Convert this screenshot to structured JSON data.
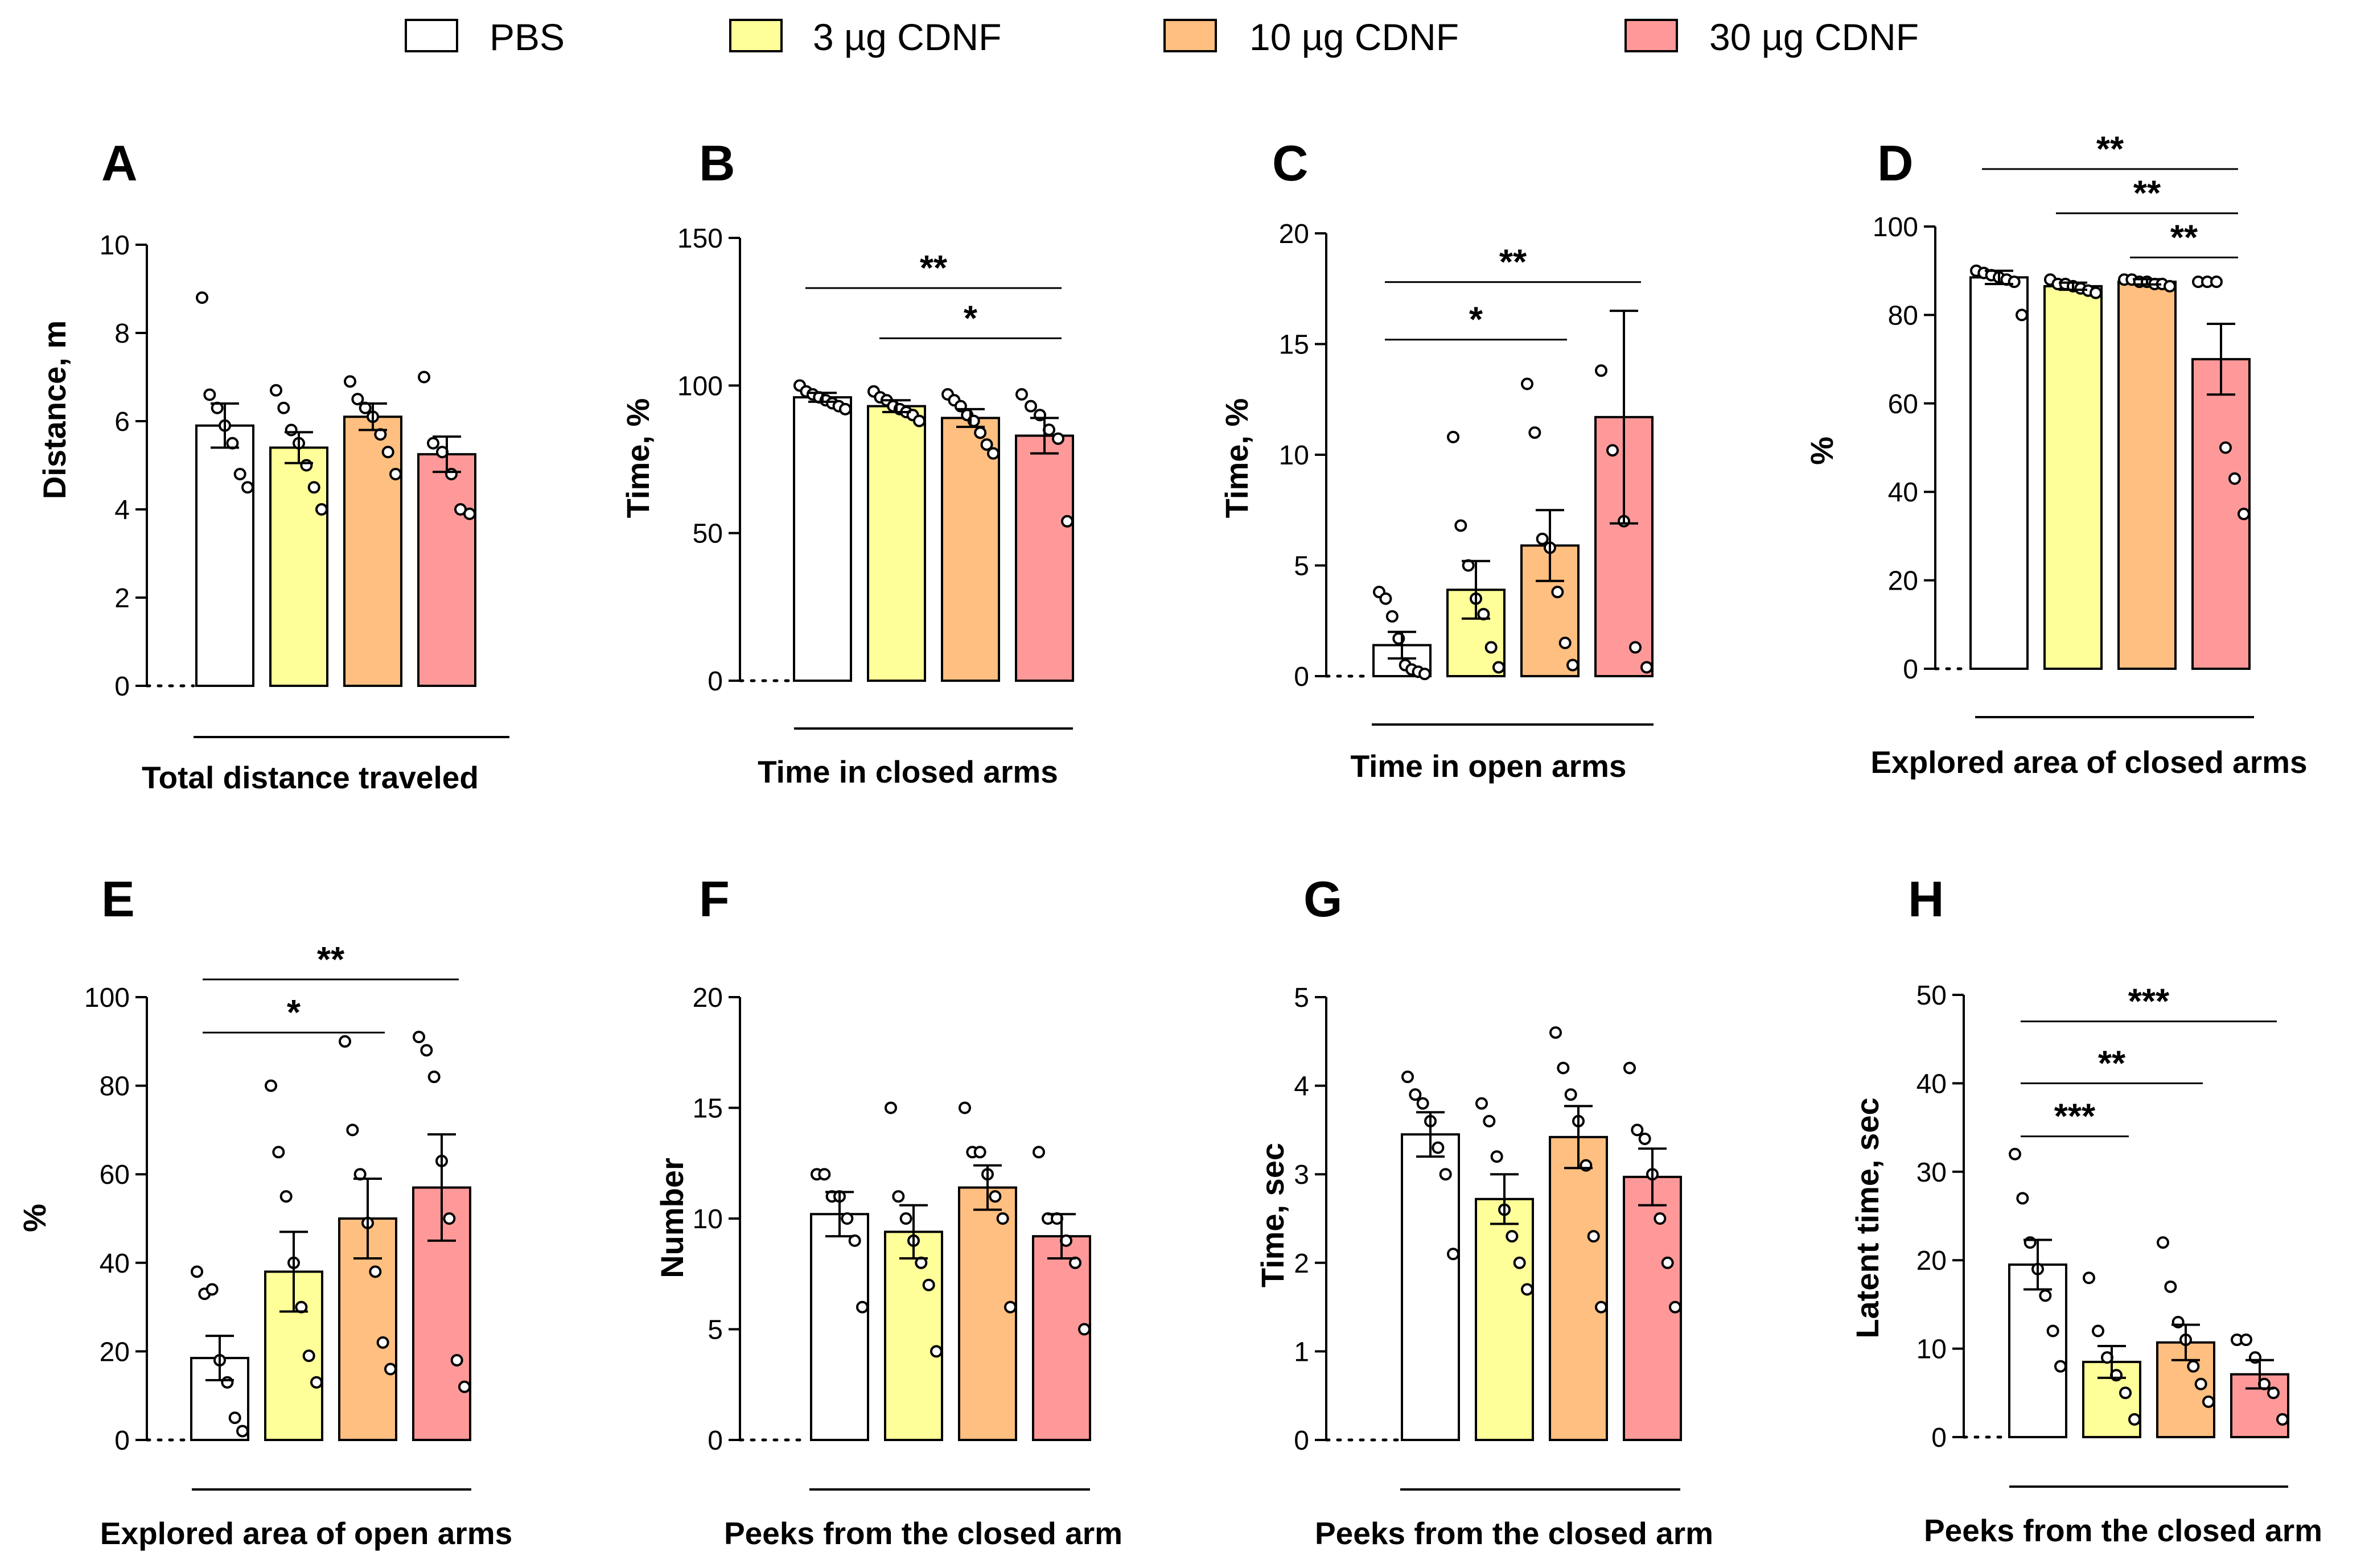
{
  "legend": [
    {
      "label": "PBS",
      "color": "#ffffff"
    },
    {
      "label": "3 µg CDNF",
      "color": "#ffff99"
    },
    {
      "label": "10 µg CDNF",
      "color": "#ffbf80"
    },
    {
      "label": "30 µg CDNF",
      "color": "#ff9999"
    }
  ],
  "chart_data": [
    {
      "type": "bar",
      "panel": "A",
      "title": "Total distance traveled",
      "ylabel": "Distance, m",
      "ylim": [
        0,
        10
      ],
      "yticks": [
        0,
        2,
        4,
        6,
        8,
        10
      ],
      "categories": [
        "PBS",
        "3 µg CDNF",
        "10 µg CDNF",
        "30 µg CDNF"
      ],
      "values": [
        5.9,
        5.4,
        6.1,
        5.25
      ],
      "sem": [
        0.5,
        0.35,
        0.3,
        0.4
      ],
      "points": [
        [
          8.8,
          6.6,
          6.3,
          5.9,
          5.5,
          4.8,
          4.5
        ],
        [
          6.7,
          6.3,
          5.8,
          5.5,
          5.0,
          4.5,
          4.0
        ],
        [
          6.9,
          6.5,
          6.3,
          6.1,
          5.7,
          5.3,
          4.8
        ],
        [
          7.0,
          5.5,
          5.3,
          4.8,
          4.0,
          3.9
        ]
      ],
      "significance": []
    },
    {
      "type": "bar",
      "panel": "B",
      "title": "Time in closed arms",
      "ylabel": "Time, %",
      "ylim": [
        0,
        150
      ],
      "yticks": [
        0,
        50,
        100,
        150
      ],
      "categories": [
        "PBS",
        "3 µg CDNF",
        "10 µg CDNF",
        "30 µg CDNF"
      ],
      "values": [
        96,
        93,
        89,
        83
      ],
      "sem": [
        1.5,
        2.0,
        3.0,
        6.0
      ],
      "points": [
        [
          100,
          98,
          97,
          96,
          95,
          94,
          93,
          92
        ],
        [
          98,
          96,
          95,
          93,
          92,
          91,
          90,
          88
        ],
        [
          97,
          95,
          93,
          90,
          88,
          84,
          80,
          77
        ],
        [
          97,
          93,
          90,
          85,
          82,
          54
        ]
      ],
      "significance": [
        {
          "from": 0,
          "to": 3,
          "label": "**",
          "value": 133
        },
        {
          "from": 1,
          "to": 3,
          "label": "*",
          "value": 116
        }
      ]
    },
    {
      "type": "bar",
      "panel": "C",
      "title": "Time in open arms",
      "ylabel": "Time, %",
      "ylim": [
        0,
        20
      ],
      "yticks": [
        0,
        5,
        10,
        15,
        20
      ],
      "categories": [
        "PBS",
        "3 µg CDNF",
        "10 µg CDNF",
        "30 µg CDNF"
      ],
      "values": [
        1.4,
        3.9,
        5.9,
        11.7
      ],
      "sem": [
        0.6,
        1.3,
        1.6,
        4.8
      ],
      "points": [
        [
          3.8,
          3.5,
          2.7,
          1.7,
          0.5,
          0.3,
          0.2,
          0.1
        ],
        [
          10.8,
          6.8,
          5.0,
          3.5,
          2.8,
          1.3,
          0.4
        ],
        [
          13.2,
          11.0,
          6.2,
          5.8,
          3.8,
          1.5,
          0.5
        ],
        [
          13.8,
          10.2,
          7.0,
          1.3,
          0.4
        ]
      ],
      "significance": [
        {
          "from": 0,
          "to": 3,
          "label": "**",
          "value": 17.8
        },
        {
          "from": 0,
          "to": 2,
          "label": "*",
          "value": 15.2
        }
      ]
    },
    {
      "type": "bar",
      "panel": "D",
      "title": "Explored area of closed arms",
      "ylabel": "%",
      "ylim": [
        0,
        100
      ],
      "yticks": [
        0,
        20,
        40,
        60,
        80,
        100
      ],
      "categories": [
        "PBS",
        "3 µg CDNF",
        "10 µg CDNF",
        "30 µg CDNF"
      ],
      "values": [
        88.5,
        86.5,
        87.5,
        70
      ],
      "sem": [
        1.5,
        0.8,
        0.6,
        8.0
      ],
      "points": [
        [
          90,
          89.5,
          89,
          88.5,
          88,
          87.5,
          80
        ],
        [
          88,
          87,
          87,
          86.5,
          86,
          85.5,
          85
        ],
        [
          88,
          88,
          87.5,
          87.5,
          87,
          87,
          86.5
        ],
        [
          87.5,
          87.5,
          87.5,
          50,
          43,
          35
        ]
      ],
      "significance": [
        {
          "from": 0,
          "to": 3,
          "label": "**",
          "value": 113
        },
        {
          "from": 1,
          "to": 3,
          "label": "**",
          "value": 103
        },
        {
          "from": 2,
          "to": 3,
          "label": "**",
          "value": 93
        }
      ]
    },
    {
      "type": "bar",
      "panel": "E",
      "title": "Explored area of open arms",
      "ylabel": "%",
      "ylim": [
        0,
        100
      ],
      "yticks": [
        0,
        20,
        40,
        60,
        80,
        100
      ],
      "categories": [
        "PBS",
        "3 µg CDNF",
        "10 µg CDNF",
        "30 µg CDNF"
      ],
      "values": [
        18.5,
        38,
        50,
        57
      ],
      "sem": [
        5,
        9,
        9,
        12
      ],
      "points": [
        [
          38,
          33,
          34,
          18,
          13,
          5,
          2
        ],
        [
          80,
          65,
          55,
          40,
          30,
          19,
          13
        ],
        [
          90,
          70,
          60,
          49,
          38,
          22,
          16
        ],
        [
          91,
          88,
          82,
          63,
          50,
          18,
          12
        ]
      ],
      "significance": [
        {
          "from": 0,
          "to": 3,
          "label": "**",
          "value": 104
        },
        {
          "from": 0,
          "to": 2,
          "label": "*",
          "value": 92
        }
      ]
    },
    {
      "type": "bar",
      "panel": "F",
      "title": "Peeks from the closed arm",
      "ylabel": "Number",
      "ylim": [
        0,
        20
      ],
      "yticks": [
        0,
        5,
        10,
        15,
        20
      ],
      "categories": [
        "PBS",
        "3 µg CDNF",
        "10 µg CDNF",
        "30 µg CDNF"
      ],
      "values": [
        10.2,
        9.4,
        11.4,
        9.2
      ],
      "sem": [
        1.0,
        1.2,
        1.0,
        1.0
      ],
      "points": [
        [
          12,
          12,
          11,
          11,
          10,
          9,
          6
        ],
        [
          15,
          11,
          10,
          9,
          8,
          7,
          4
        ],
        [
          15,
          13,
          13,
          12,
          11,
          10,
          6
        ],
        [
          13,
          10,
          10,
          9,
          8,
          5
        ]
      ],
      "significance": []
    },
    {
      "type": "bar",
      "panel": "G",
      "title": "Peeks from the closed arm",
      "ylabel": "Time, sec",
      "ylim": [
        0,
        5
      ],
      "yticks": [
        0,
        1,
        2,
        3,
        4,
        5
      ],
      "categories": [
        "PBS",
        "3 µg CDNF",
        "10 µg CDNF",
        "30 µg CDNF"
      ],
      "values": [
        3.45,
        2.72,
        3.42,
        2.97
      ],
      "sem": [
        0.25,
        0.28,
        0.35,
        0.32
      ],
      "points": [
        [
          4.1,
          3.9,
          3.8,
          3.6,
          3.3,
          3.0,
          2.1
        ],
        [
          3.8,
          3.6,
          3.2,
          2.6,
          2.3,
          2.0,
          1.7
        ],
        [
          4.6,
          4.2,
          3.9,
          3.6,
          3.1,
          2.3,
          1.5
        ],
        [
          4.2,
          3.5,
          3.4,
          3.0,
          2.5,
          2.0,
          1.5
        ]
      ],
      "significance": []
    },
    {
      "type": "bar",
      "panel": "H",
      "title": "Peeks from the closed arm",
      "ylabel": "Latent time, sec",
      "ylim": [
        0,
        50
      ],
      "yticks": [
        0,
        10,
        20,
        30,
        40,
        50
      ],
      "categories": [
        "PBS",
        "3 µg CDNF",
        "10 µg CDNF",
        "30 µg CDNF"
      ],
      "values": [
        19.5,
        8.5,
        10.7,
        7.1
      ],
      "sem": [
        2.8,
        1.8,
        2.0,
        1.6
      ],
      "points": [
        [
          32,
          27,
          22,
          19,
          16,
          12,
          8
        ],
        [
          18,
          12,
          9,
          7,
          5,
          2
        ],
        [
          22,
          17,
          13,
          11,
          8,
          6,
          4
        ],
        [
          11,
          11,
          9,
          6,
          5,
          2
        ]
      ],
      "significance": [
        {
          "from": 0,
          "to": 3,
          "label": "***",
          "value": 47
        },
        {
          "from": 0,
          "to": 2,
          "label": "**",
          "value": 40
        },
        {
          "from": 0,
          "to": 1,
          "label": "***",
          "value": 34
        }
      ]
    }
  ]
}
